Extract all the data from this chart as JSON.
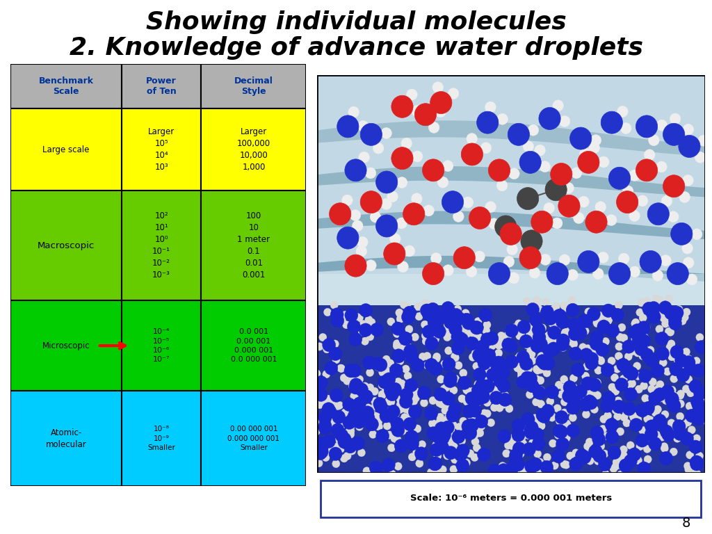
{
  "background_color": "#ffffff",
  "table_header_bg": "#b0b0b0",
  "table_header_color": "#003399",
  "header": [
    "Benchmark\nScale",
    "Power\nof Ten",
    "Decimal\nStyle"
  ],
  "rows": [
    [
      "Large scale",
      "Larger\n10⁵\n10⁴\n10³",
      "Larger\n100,000\n10,000\n1,000"
    ],
    [
      "Macroscopic",
      "10²\n10¹\n10⁰\n10⁻¹\n10⁻²\n10⁻³",
      "100\n10\n1 meter\n0.1\n0.01\n0.001"
    ],
    [
      "Microscopic",
      "10⁻⁴\n10⁻⁵\n10⁻⁶\n10⁻⁷",
      "0.0 001\n0.00 001\n0.000 001\n0.0 000 001"
    ],
    [
      "Atomic-\nmolecular",
      "10⁻⁸\n10⁻⁹\nSmaller",
      "0.00 000 001\n0.000 000 001\nSmaller"
    ]
  ],
  "row_colors": [
    "#ffff00",
    "#66cc00",
    "#00cc00",
    "#00ccff"
  ],
  "caption_text": "Scale: 10⁻⁶ meters = 0.000 001 meters",
  "page_number": "8",
  "title1": "Showing individual molecules",
  "title2": "2. Knowledge of advance water droplets"
}
